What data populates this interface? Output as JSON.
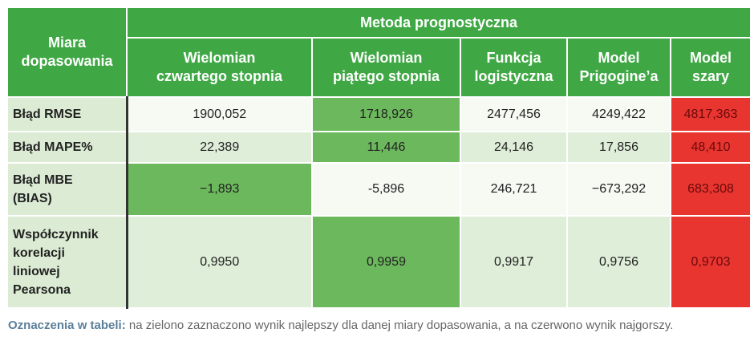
{
  "table": {
    "header": {
      "corner": "Miara\ndopasowania",
      "group": "Metoda prognostyczna",
      "columns": [
        "Wielomian\nczwartego stopnia",
        "Wielomian\npiątego stopnia",
        "Funkcja\nlogistyczna",
        "Model\nPrigogine’a",
        "Model\nszary"
      ]
    },
    "rows": [
      {
        "label": "Błąd RMSE",
        "values": [
          "1900,052",
          "1718,926",
          "2477,456",
          "4249,422",
          "4817,363"
        ]
      },
      {
        "label": "Błąd MAPE%",
        "values": [
          "22,389",
          "11,446",
          "24,146",
          "17,856",
          "48,410"
        ]
      },
      {
        "label": "Błąd MBE\n(BIAS)",
        "values": [
          "−1,893",
          "-5,896",
          "246,721",
          "−673,292",
          "683,308"
        ]
      },
      {
        "label": "Współczynnik\nkorelacji\nliniowej\nPearsona",
        "values": [
          "0,9950",
          "0,9959",
          "0,9917",
          "0,9756",
          "0,9703"
        ]
      }
    ]
  },
  "legend": {
    "label": "Oznaczenia w tabeli:",
    "text": "na zielono zaznaczono wynik najlepszy dla danej miary dopasowania, a na czerwono wynik najgorszy."
  }
}
